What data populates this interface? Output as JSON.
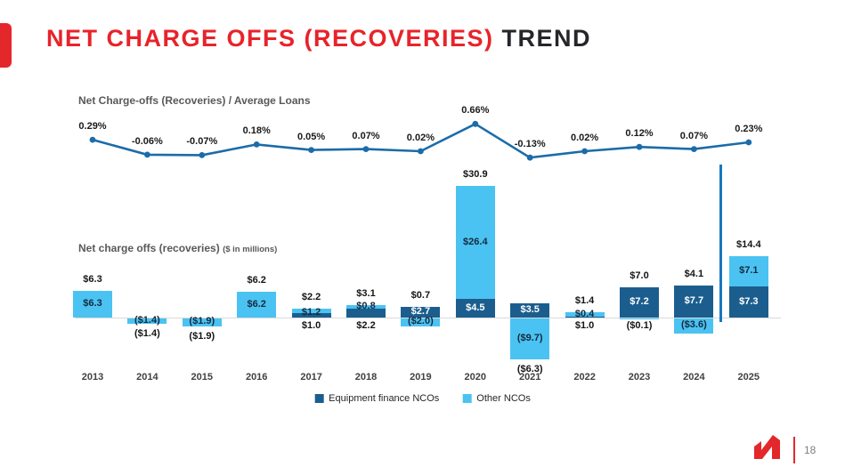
{
  "slide": {
    "title_red": "NET CHARGE OFFS (RECOVERIES)",
    "title_dark": "TREND",
    "page_number": "18"
  },
  "colors": {
    "accent_red": "#e3272b",
    "title_red": "#e8232a",
    "title_dark": "#26262a",
    "equipment_finance_dark_blue": "#1b5e8e",
    "other_ncos_light_blue": "#4ac3f2",
    "line_blue": "#1b6ca8",
    "divider_blue": "#1778be"
  },
  "chart_data": [
    {
      "type": "line",
      "title": "Net Charge-offs (Recoveries) / Average Loans",
      "unit": "percent of average loans",
      "categories": [
        "2013",
        "2014",
        "2015",
        "2016",
        "2017",
        "2018",
        "2019",
        "2020",
        "2021",
        "2022",
        "2023",
        "2024",
        "2025"
      ],
      "values": [
        0.29,
        -0.06,
        -0.07,
        0.18,
        0.05,
        0.07,
        0.02,
        0.66,
        -0.13,
        0.02,
        0.12,
        0.07,
        0.23
      ],
      "labels": [
        "0.29%",
        "-0.06%",
        "-0.07%",
        "0.18%",
        "0.05%",
        "0.07%",
        "0.02%",
        "0.66%",
        "-0.13%",
        "0.02%",
        "0.12%",
        "0.07%",
        "0.23%"
      ],
      "ylim": [
        -0.3,
        0.8
      ],
      "grid": false,
      "legend_position": "none"
    },
    {
      "type": "bar",
      "stacked": true,
      "title": "Net charge offs (recoveries)",
      "title_suffix": "($ in millions)",
      "categories": [
        "2013",
        "2014",
        "2015",
        "2016",
        "2017",
        "2018",
        "2019",
        "2020",
        "2021",
        "2022",
        "2023",
        "2024",
        "2025"
      ],
      "series": [
        {
          "name": "Equipment finance NCOs",
          "color": "#1b5e8e",
          "values": [
            null,
            null,
            null,
            null,
            1.2,
            2.2,
            2.7,
            4.5,
            3.5,
            0.4,
            7.2,
            7.7,
            7.3
          ]
        },
        {
          "name": "Other NCOs",
          "color": "#4ac3f2",
          "values": [
            6.3,
            -1.4,
            -1.9,
            6.2,
            1.0,
            0.8,
            -2.0,
            26.4,
            -9.7,
            1.0,
            -0.1,
            -3.6,
            7.1
          ]
        }
      ],
      "totals": [
        "$6.3",
        "($1.4)",
        "($1.9)",
        "$6.2",
        "$2.2",
        "$3.1",
        "$0.7",
        "$30.9",
        "($6.3)",
        "$1.4",
        "$7.0",
        "$4.1",
        "$14.4"
      ],
      "ylim": [
        -12,
        32
      ],
      "grid": false,
      "legend_position": "bottom",
      "legend": [
        {
          "label": "Equipment finance NCOs",
          "color": "#1b5e8e"
        },
        {
          "label": "Other NCOs",
          "color": "#4ac3f2"
        }
      ],
      "bars": [
        {
          "year": "2013",
          "equip": null,
          "other": 6.3,
          "total": "$6.3",
          "total_pos": "above",
          "labels": [
            {
              "t": "$6.3",
              "p": "other"
            }
          ]
        },
        {
          "year": "2014",
          "equip": null,
          "other": -1.4,
          "total": "($1.4)",
          "total_pos": "below",
          "labels": [
            {
              "t": "($1.4)",
              "p": "other"
            }
          ]
        },
        {
          "year": "2015",
          "equip": null,
          "other": -1.9,
          "total": "($1.9)",
          "total_pos": "below",
          "labels": [
            {
              "t": "($1.9)",
              "p": "other"
            }
          ]
        },
        {
          "year": "2016",
          "equip": null,
          "other": 6.2,
          "total": "$6.2",
          "total_pos": "above",
          "labels": [
            {
              "t": "$6.2",
              "p": "other"
            }
          ]
        },
        {
          "year": "2017",
          "equip": 1.2,
          "other": 1.0,
          "total": "$2.2",
          "total_pos": "above",
          "labels": [
            {
              "t": "$1.2",
              "p": "bar"
            },
            {
              "t": "$1.0",
              "p": "below-axis"
            }
          ]
        },
        {
          "year": "2018",
          "equip": 2.2,
          "other": 0.8,
          "total": "$3.1",
          "total_pos": "above",
          "labels": [
            {
              "t": "$0.8",
              "p": "other"
            },
            {
              "t": "$2.2",
              "p": "below-axis"
            }
          ]
        },
        {
          "year": "2019",
          "equip": 2.7,
          "other": -2.0,
          "total": "$0.7",
          "total_pos": "above",
          "labels": [
            {
              "t": "$2.7",
              "p": "equip"
            },
            {
              "t": "($2.0)",
              "p": "other"
            }
          ]
        },
        {
          "year": "2020",
          "equip": 4.5,
          "other": 26.4,
          "total": "$30.9",
          "total_pos": "above",
          "labels": [
            {
              "t": "$4.5",
              "p": "equip"
            },
            {
              "t": "$26.4",
              "p": "other"
            }
          ]
        },
        {
          "year": "2021",
          "equip": 3.5,
          "other": -9.7,
          "total": "($6.3)",
          "total_pos": "below",
          "labels": [
            {
              "t": "$3.5",
              "p": "equip"
            },
            {
              "t": "($9.7)",
              "p": "other"
            }
          ]
        },
        {
          "year": "2022",
          "equip": 0.4,
          "other": 1.0,
          "total": "$1.4",
          "total_pos": "above",
          "labels": [
            {
              "t": "$0.4",
              "p": "bar"
            },
            {
              "t": "$1.0",
              "p": "below-axis"
            }
          ]
        },
        {
          "year": "2023",
          "equip": 7.2,
          "other": -0.1,
          "total": "$7.0",
          "total_pos": "above",
          "labels": [
            {
              "t": "$7.2",
              "p": "equip"
            },
            {
              "t": "($0.1)",
              "p": "below-axis"
            }
          ]
        },
        {
          "year": "2024",
          "equip": 7.7,
          "other": -3.6,
          "total": "$4.1",
          "total_pos": "above",
          "labels": [
            {
              "t": "$7.7",
              "p": "equip"
            },
            {
              "t": "($3.6)",
              "p": "other"
            }
          ]
        },
        {
          "year": "2025",
          "equip": 7.3,
          "other": 7.1,
          "total": "$14.4",
          "total_pos": "above",
          "labels": [
            {
              "t": "$7.3",
              "p": "equip"
            },
            {
              "t": "$7.1",
              "p": "other"
            }
          ]
        }
      ],
      "annotations": [
        "vertical blue divider line before 2025 column"
      ]
    }
  ]
}
